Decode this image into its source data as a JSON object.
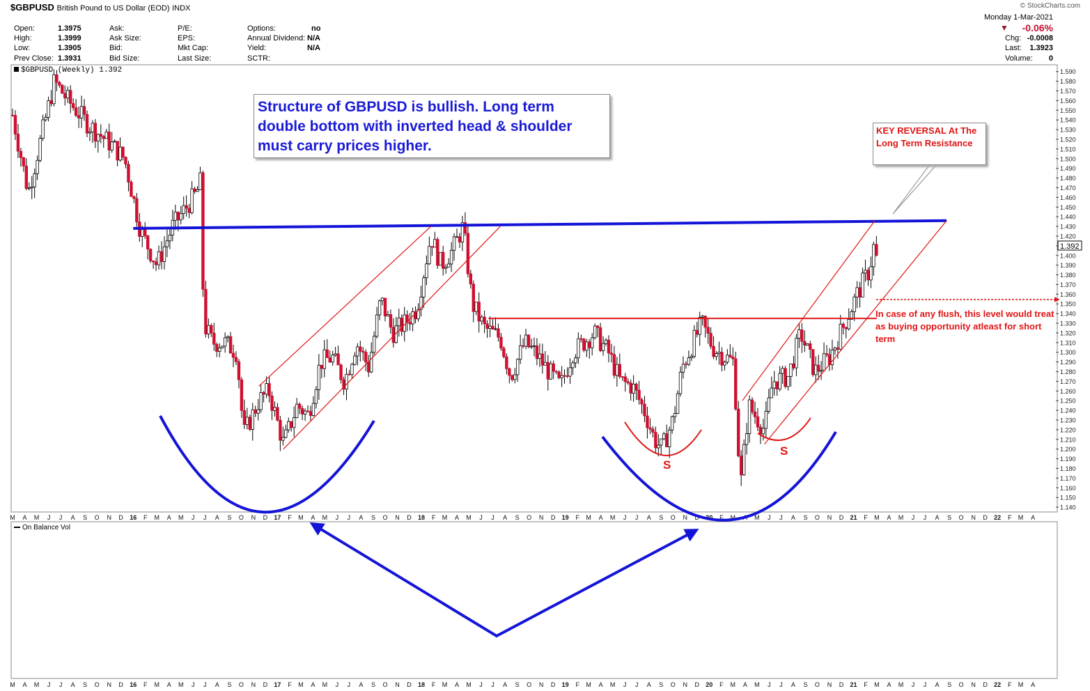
{
  "header": {
    "symbol": "$GBPUSD",
    "description": "British Pound to US Dollar (EOD)",
    "exchange": "INDX",
    "watermark": "© StockCharts.com",
    "date": "Monday  1-Mar-2021",
    "fields": [
      {
        "label": "Open:",
        "value": "1.3975"
      },
      {
        "label": "High:",
        "value": "1.3999"
      },
      {
        "label": "Low:",
        "value": "1.3905"
      },
      {
        "label": "Prev Close:",
        "value": "1.3931"
      }
    ],
    "fields2": [
      "Ask:",
      "Ask Size:",
      "Bid:",
      "Bid Size:"
    ],
    "fields3": [
      "P/E:",
      "EPS:",
      "Mkt Cap:",
      "Last Size:"
    ],
    "fields4": [
      {
        "label": "Options:",
        "value": "no"
      },
      {
        "label": "Annual Dividend:",
        "value": "N/A"
      },
      {
        "label": "Yield:",
        "value": "N/A"
      },
      {
        "label": "SCTR:",
        "value": ""
      }
    ],
    "change_pct": "-0.06%",
    "right": [
      {
        "label": "Chg:",
        "value": "-0.0008"
      },
      {
        "label": "Last:",
        "value": "1.3923"
      },
      {
        "label": "Volume:",
        "value": "0"
      }
    ],
    "price_legend": "$GBPUSD (Weekly) 1.392",
    "obv_legend": "On Balance Vol",
    "last_price_label": "1.392"
  },
  "annotations": {
    "main_text": "Structure of GBPUSD is bullish. Long term double bottom with inverted head & shoulder must carry prices higher.",
    "key_reversal": "KEY REVERSAL At The Long Term Resistance",
    "flush_note": "In case of any flush, this level would treat as buying opportunity atleast for short term",
    "shoulder_label": "S"
  },
  "colors": {
    "up": "#ffffff",
    "down": "#d01030",
    "trend_blue": "#1414d8",
    "channel_red": "#e01414"
  },
  "chart_data": {
    "type": "candlestick",
    "interval": "weekly",
    "ylim": [
      1.135,
      1.597
    ],
    "y_ticks": [
      1.14,
      1.15,
      1.16,
      1.17,
      1.18,
      1.19,
      1.2,
      1.21,
      1.22,
      1.23,
      1.24,
      1.25,
      1.26,
      1.27,
      1.28,
      1.29,
      1.3,
      1.31,
      1.32,
      1.33,
      1.34,
      1.35,
      1.36,
      1.37,
      1.38,
      1.39,
      1.4,
      1.41,
      1.42,
      1.43,
      1.44,
      1.45,
      1.46,
      1.47,
      1.48,
      1.49,
      1.5,
      1.51,
      1.52,
      1.53,
      1.54,
      1.55,
      1.56,
      1.57,
      1.58,
      1.59
    ],
    "x_range": [
      "2015-03-01",
      "2022-05-15"
    ],
    "x_ticks": [
      "M",
      "A",
      "M",
      "J",
      "J",
      "A",
      "S",
      "O",
      "N",
      "D",
      "16",
      "F",
      "M",
      "A",
      "M",
      "J",
      "J",
      "A",
      "S",
      "O",
      "N",
      "D",
      "17",
      "F",
      "M",
      "A",
      "M",
      "J",
      "J",
      "A",
      "S",
      "O",
      "N",
      "D",
      "18",
      "F",
      "M",
      "A",
      "M",
      "J",
      "J",
      "A",
      "S",
      "O",
      "N",
      "D",
      "19",
      "F",
      "M",
      "A",
      "M",
      "J",
      "J",
      "A",
      "S",
      "O",
      "N",
      "D",
      "20",
      "F",
      "M",
      "A",
      "M",
      "J",
      "J",
      "A",
      "S",
      "O",
      "N",
      "D",
      "21",
      "F",
      "M",
      "A",
      "M",
      "J",
      "J",
      "A",
      "S",
      "O",
      "N",
      "D",
      "22",
      "F",
      "M",
      "A"
    ],
    "anchors": [
      [
        "2015-03-01",
        1.545
      ],
      [
        "2015-04-10",
        1.465
      ],
      [
        "2015-06-15",
        1.58
      ],
      [
        "2015-07-20",
        1.56
      ],
      [
        "2015-09-10",
        1.535
      ],
      [
        "2015-11-05",
        1.515
      ],
      [
        "2015-12-10",
        1.5
      ],
      [
        "2016-01-20",
        1.425
      ],
      [
        "2016-03-01",
        1.39
      ],
      [
        "2016-04-10",
        1.43
      ],
      [
        "2016-06-10",
        1.465
      ],
      [
        "2016-06-23",
        1.48
      ],
      [
        "2016-06-27",
        1.33
      ],
      [
        "2016-07-20",
        1.31
      ],
      [
        "2016-08-20",
        1.31
      ],
      [
        "2016-09-20",
        1.3
      ],
      [
        "2016-10-07",
        1.215
      ],
      [
        "2016-11-15",
        1.25
      ],
      [
        "2016-12-10",
        1.26
      ],
      [
        "2017-01-16",
        1.205
      ],
      [
        "2017-02-20",
        1.245
      ],
      [
        "2017-03-20",
        1.235
      ],
      [
        "2017-04-20",
        1.29
      ],
      [
        "2017-05-20",
        1.295
      ],
      [
        "2017-06-20",
        1.27
      ],
      [
        "2017-07-20",
        1.31
      ],
      [
        "2017-08-20",
        1.285
      ],
      [
        "2017-09-20",
        1.355
      ],
      [
        "2017-10-20",
        1.32
      ],
      [
        "2017-11-20",
        1.33
      ],
      [
        "2017-12-20",
        1.345
      ],
      [
        "2018-01-25",
        1.42
      ],
      [
        "2018-02-20",
        1.39
      ],
      [
        "2018-03-20",
        1.405
      ],
      [
        "2018-04-17",
        1.43
      ],
      [
        "2018-05-10",
        1.35
      ],
      [
        "2018-06-10",
        1.325
      ],
      [
        "2018-07-20",
        1.315
      ],
      [
        "2018-08-15",
        1.275
      ],
      [
        "2018-09-20",
        1.31
      ],
      [
        "2018-10-15",
        1.3
      ],
      [
        "2018-11-20",
        1.28
      ],
      [
        "2018-12-20",
        1.265
      ],
      [
        "2019-01-20",
        1.3
      ],
      [
        "2019-03-15",
        1.32
      ],
      [
        "2019-04-20",
        1.3
      ],
      [
        "2019-05-20",
        1.27
      ],
      [
        "2019-06-20",
        1.265
      ],
      [
        "2019-07-20",
        1.24
      ],
      [
        "2019-08-15",
        1.21
      ],
      [
        "2019-09-03",
        1.2
      ],
      [
        "2019-10-01",
        1.23
      ],
      [
        "2019-10-25",
        1.285
      ],
      [
        "2019-12-13",
        1.33
      ],
      [
        "2020-01-10",
        1.305
      ],
      [
        "2020-02-10",
        1.295
      ],
      [
        "2020-03-03",
        1.29
      ],
      [
        "2020-03-20",
        1.16
      ],
      [
        "2020-04-10",
        1.245
      ],
      [
        "2020-05-20",
        1.22
      ],
      [
        "2020-06-10",
        1.27
      ],
      [
        "2020-07-20",
        1.275
      ],
      [
        "2020-08-20",
        1.32
      ],
      [
        "2020-09-25",
        1.28
      ],
      [
        "2020-11-01",
        1.295
      ],
      [
        "2020-12-10",
        1.33
      ],
      [
        "2021-01-10",
        1.36
      ],
      [
        "2021-02-10",
        1.385
      ],
      [
        "2021-02-24",
        1.415
      ],
      [
        "2021-03-01",
        1.392
      ]
    ],
    "lines": [
      {
        "role": "long-term resistance",
        "color": "blue",
        "points": [
          [
            "2016-01-01",
            1.428
          ],
          [
            "2021-08-25",
            1.436
          ]
        ]
      },
      {
        "role": "neckline",
        "color": "red",
        "points": [
          [
            "2018-06-20",
            1.335
          ],
          [
            "2021-03-01",
            1.335
          ]
        ]
      },
      {
        "role": "channel-1 upper",
        "color": "red",
        "points": [
          [
            "2016-11-15",
            1.265
          ],
          [
            "2018-01-25",
            1.43
          ]
        ]
      },
      {
        "role": "channel-1 lower",
        "color": "red",
        "points": [
          [
            "2017-01-16",
            1.2
          ],
          [
            "2018-07-20",
            1.43
          ]
        ]
      },
      {
        "role": "channel-2 upper",
        "color": "red",
        "points": [
          [
            "2020-03-25",
            1.25
          ],
          [
            "2021-02-24",
            1.436
          ]
        ]
      },
      {
        "role": "channel-2 lower",
        "color": "red",
        "points": [
          [
            "2020-05-20",
            1.205
          ],
          [
            "2021-08-25",
            1.436
          ]
        ]
      }
    ]
  }
}
